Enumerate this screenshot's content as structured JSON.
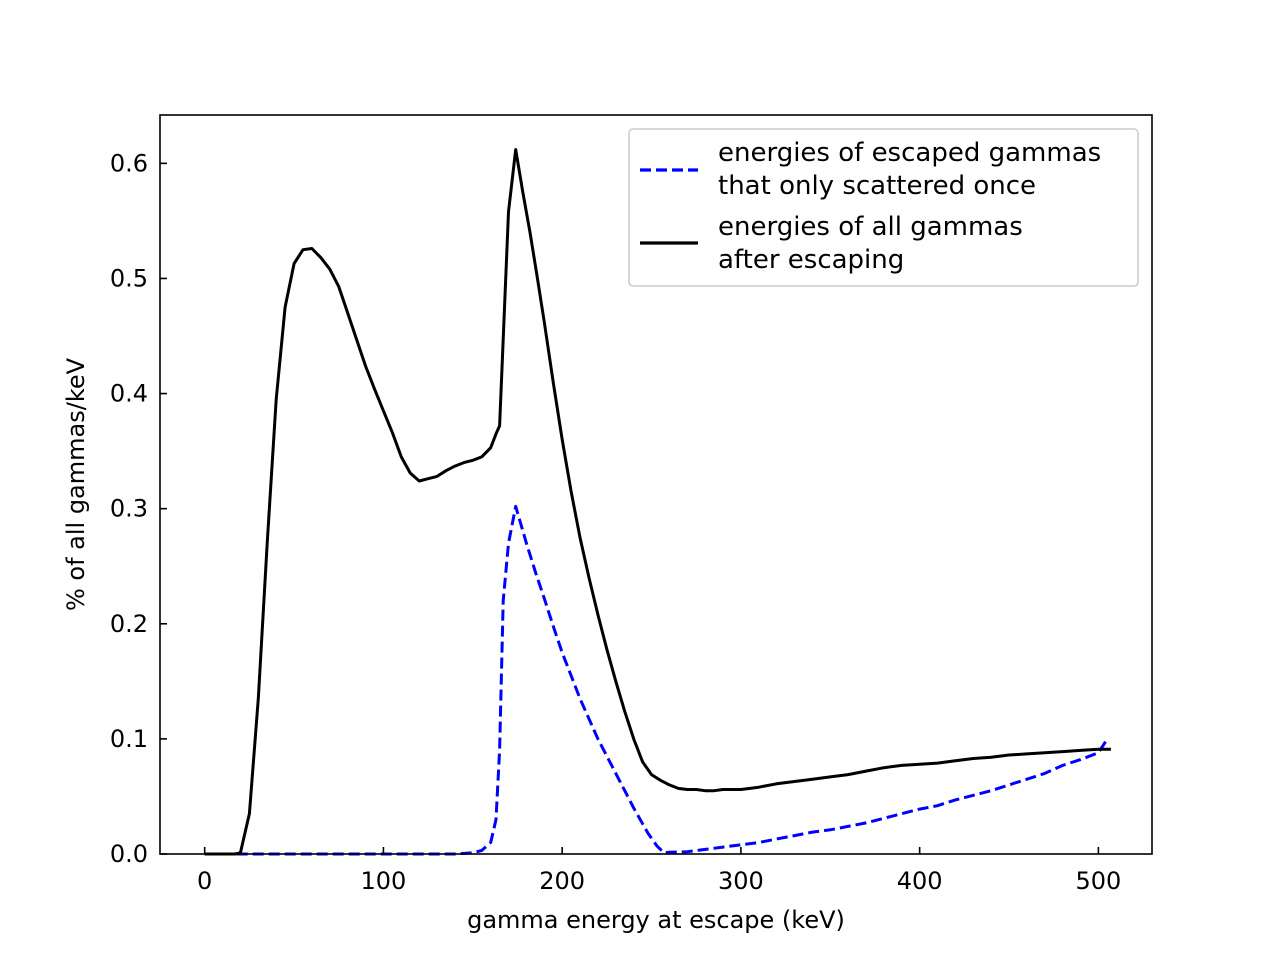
{
  "chart_data": {
    "type": "line",
    "title": "",
    "xlabel": "gamma energy at escape (keV)",
    "ylabel": "% of all gammas/keV",
    "xlim": [
      -25,
      530
    ],
    "ylim": [
      0,
      0.642
    ],
    "xticks": [
      0,
      100,
      200,
      300,
      400,
      500
    ],
    "yticks": [
      0.0,
      0.1,
      0.2,
      0.3,
      0.4,
      0.5,
      0.6
    ],
    "xtick_labels": [
      "0",
      "100",
      "200",
      "300",
      "400",
      "500"
    ],
    "ytick_labels": [
      "0.0",
      "0.1",
      "0.2",
      "0.3",
      "0.4",
      "0.5",
      "0.6"
    ],
    "grid": false,
    "legend_position": "top-right",
    "series": [
      {
        "name": "energies of escaped gammas that only scattered once",
        "legend_lines": [
          "energies of escaped gammas",
          "that only scattered once"
        ],
        "color": "#0000ff",
        "dash": "dashed",
        "x": [
          0,
          20,
          50,
          100,
          140,
          150,
          155,
          160,
          163,
          165,
          167,
          170,
          174,
          180,
          185,
          190,
          195,
          200,
          210,
          220,
          230,
          240,
          248,
          253,
          257,
          260,
          270,
          280,
          290,
          300,
          310,
          320,
          330,
          340,
          350,
          360,
          370,
          380,
          390,
          400,
          410,
          420,
          430,
          440,
          450,
          460,
          470,
          480,
          490,
          500,
          505
        ],
        "y": [
          0.0,
          0.0,
          0.0,
          0.0,
          0.0,
          0.001,
          0.003,
          0.01,
          0.03,
          0.09,
          0.22,
          0.27,
          0.302,
          0.27,
          0.245,
          0.222,
          0.198,
          0.175,
          0.135,
          0.1,
          0.07,
          0.04,
          0.018,
          0.007,
          0.001,
          0.0015,
          0.002,
          0.004,
          0.006,
          0.008,
          0.01,
          0.013,
          0.016,
          0.019,
          0.021,
          0.024,
          0.027,
          0.031,
          0.035,
          0.039,
          0.042,
          0.047,
          0.051,
          0.055,
          0.06,
          0.065,
          0.07,
          0.077,
          0.082,
          0.088,
          0.1
        ]
      },
      {
        "name": "energies of all gammas after escaping",
        "legend_lines": [
          "energies of all gammas",
          "after escaping"
        ],
        "color": "#000000",
        "dash": "solid",
        "x": [
          0,
          10,
          17,
          20,
          25,
          30,
          35,
          40,
          45,
          50,
          55,
          60,
          65,
          70,
          75,
          80,
          85,
          90,
          95,
          100,
          105,
          110,
          115,
          120,
          125,
          130,
          135,
          140,
          145,
          150,
          155,
          160,
          163,
          165,
          170,
          174,
          178,
          182,
          186,
          190,
          195,
          200,
          205,
          210,
          215,
          220,
          225,
          230,
          235,
          240,
          245,
          250,
          255,
          260,
          265,
          270,
          275,
          280,
          285,
          290,
          300,
          310,
          320,
          330,
          340,
          350,
          360,
          370,
          380,
          390,
          400,
          410,
          420,
          430,
          440,
          450,
          460,
          470,
          480,
          490,
          500,
          507
        ],
        "y": [
          0.0,
          0.0,
          0.0,
          0.001,
          0.035,
          0.135,
          0.27,
          0.395,
          0.475,
          0.513,
          0.525,
          0.526,
          0.518,
          0.508,
          0.493,
          0.47,
          0.447,
          0.424,
          0.404,
          0.385,
          0.366,
          0.345,
          0.331,
          0.324,
          0.326,
          0.328,
          0.333,
          0.337,
          0.34,
          0.342,
          0.345,
          0.353,
          0.365,
          0.372,
          0.558,
          0.612,
          0.575,
          0.54,
          0.502,
          0.462,
          0.41,
          0.36,
          0.315,
          0.275,
          0.24,
          0.208,
          0.178,
          0.15,
          0.124,
          0.1,
          0.08,
          0.069,
          0.064,
          0.06,
          0.057,
          0.056,
          0.056,
          0.055,
          0.055,
          0.056,
          0.056,
          0.058,
          0.061,
          0.063,
          0.065,
          0.067,
          0.069,
          0.072,
          0.075,
          0.077,
          0.078,
          0.079,
          0.081,
          0.083,
          0.084,
          0.086,
          0.087,
          0.088,
          0.089,
          0.09,
          0.091,
          0.091
        ]
      }
    ]
  }
}
